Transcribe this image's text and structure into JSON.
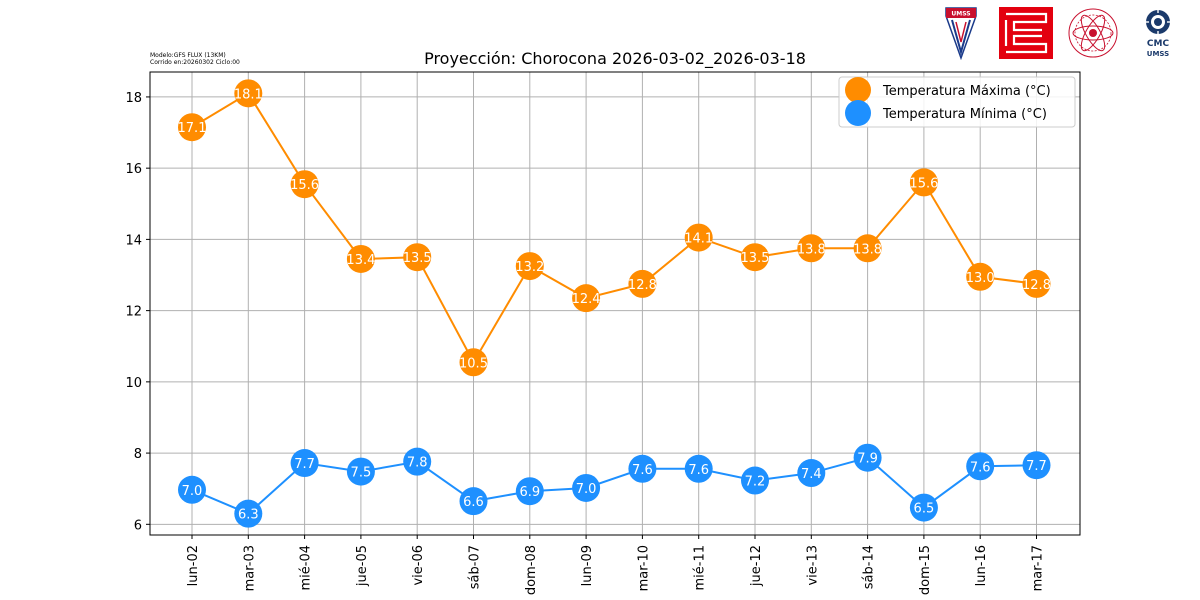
{
  "header": {
    "model_line": "Modelo:GFS FLUX (13KM)",
    "run_line": "Corrido en:20260302 Ciclo:00"
  },
  "logos": {
    "umss_label": "UMSS",
    "cmc_label": "CMC",
    "cmc_sub": "UMSS"
  },
  "chart_data": {
    "type": "line",
    "title": "Proyección: Chorocona 2026-03-02_2026-03-18",
    "xlabel": "",
    "ylabel": "",
    "ylim": [
      5.7,
      18.7
    ],
    "yticks": [
      6,
      8,
      10,
      12,
      14,
      16,
      18
    ],
    "grid": true,
    "legend_position": "top-right",
    "categories": [
      "lun-02",
      "mar-03",
      "mié-04",
      "jue-05",
      "vie-06",
      "sáb-07",
      "dom-08",
      "lun-09",
      "mar-10",
      "mié-11",
      "jue-12",
      "vie-13",
      "sáb-14",
      "dom-15",
      "lun-16",
      "mar-17"
    ],
    "series": [
      {
        "name": "Temperatura Máxima  (°C)",
        "color": "#ff8c00",
        "values": [
          17.15,
          18.1,
          15.55,
          13.45,
          13.5,
          10.55,
          13.25,
          12.35,
          12.75,
          14.05,
          13.5,
          13.75,
          13.75,
          15.6,
          12.95,
          12.75
        ],
        "labels": [
          "17.1",
          "18.1",
          "15.6",
          "13.4",
          "13.5",
          "10.5",
          "13.2",
          "12.4",
          "12.8",
          "14.1",
          "13.5",
          "13.8",
          "13.8",
          "15.6",
          "13.0",
          "12.8"
        ]
      },
      {
        "name": "Temperatura Mínima  (°C)",
        "color": "#1e90ff",
        "values": [
          6.97,
          6.3,
          7.72,
          7.48,
          7.76,
          6.65,
          6.93,
          7.02,
          7.56,
          7.56,
          7.23,
          7.44,
          7.87,
          6.47,
          7.63,
          7.66
        ],
        "labels": [
          "7.0",
          "6.3",
          "7.7",
          "7.5",
          "7.8",
          "6.6",
          "6.9",
          "7.0",
          "7.6",
          "7.6",
          "7.2",
          "7.4",
          "7.9",
          "6.5",
          "7.6",
          "7.7"
        ]
      }
    ]
  }
}
